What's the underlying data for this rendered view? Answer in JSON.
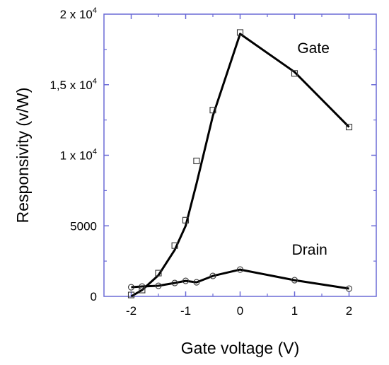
{
  "chart_data": {
    "type": "line",
    "title": "",
    "xlabel": "Gate voltage (V)",
    "ylabel": "Responsivity (v/W)",
    "xlim": [
      -2.5,
      2.5
    ],
    "ylim": [
      0,
      20000
    ],
    "grid": false,
    "x_ticks": [
      -2,
      -1,
      0,
      1,
      2
    ],
    "x_tick_labels": [
      "-2",
      "-1",
      "0",
      "1",
      "2"
    ],
    "y_ticks": [
      0,
      5000,
      10000,
      15000,
      20000
    ],
    "y_tick_labels": [
      {
        "base": "0",
        "exp": ""
      },
      {
        "base": "5000",
        "exp": ""
      },
      {
        "base": "1 x 10",
        "exp": "4"
      },
      {
        "base": "1,5 x 10",
        "exp": "4"
      },
      {
        "base": "2 x 10",
        "exp": "4"
      }
    ],
    "series": [
      {
        "name": "Gate",
        "marker": "square",
        "x": [
          -2.0,
          -1.8,
          -1.5,
          -1.2,
          -1.0,
          -0.8,
          -0.5,
          0.0,
          1.0,
          2.0
        ],
        "y": [
          100,
          450,
          1650,
          3600,
          5400,
          9600,
          13200,
          18700,
          15800,
          12000
        ],
        "line_x": [
          -2.0,
          -1.8,
          -1.5,
          -1.2,
          -1.0,
          -0.8,
          -0.5,
          0.0,
          1.0,
          2.0
        ],
        "line_y": [
          0,
          450,
          1500,
          3300,
          5000,
          8000,
          12800,
          18600,
          15900,
          12000
        ]
      },
      {
        "name": "Drain",
        "marker": "circle",
        "x": [
          -2.0,
          -1.8,
          -1.5,
          -1.2,
          -1.0,
          -0.8,
          -0.5,
          0.0,
          1.0,
          2.0
        ],
        "y": [
          650,
          700,
          750,
          950,
          1100,
          1000,
          1450,
          1900,
          1150,
          550
        ],
        "line_x": [
          -2.0,
          -1.8,
          -1.5,
          -1.2,
          -1.0,
          -0.8,
          -0.5,
          0.0,
          1.0,
          2.0
        ],
        "line_y": [
          650,
          700,
          750,
          950,
          1100,
          1000,
          1450,
          1900,
          1150,
          550
        ]
      }
    ],
    "annotations": [
      {
        "text": "Gate",
        "x": 1.05,
        "y": 17250
      },
      {
        "text": "Drain",
        "x": 0.95,
        "y": 2950
      }
    ],
    "colors": {
      "axis": "#6b6bd6",
      "line": "#000000",
      "marker": "#333333"
    }
  }
}
